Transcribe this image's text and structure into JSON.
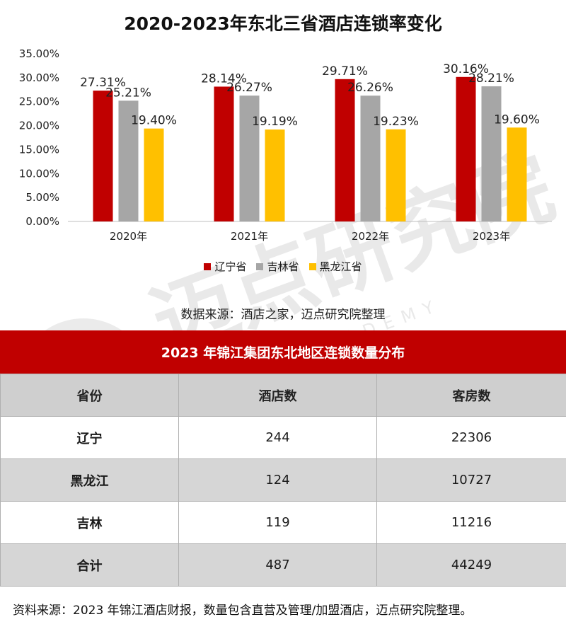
{
  "chart_data": {
    "type": "bar",
    "title": "2020-2023年东北三省酒店连锁率变化",
    "categories": [
      "2020年",
      "2021年",
      "2022年",
      "2023年"
    ],
    "series": [
      {
        "name": "辽宁省",
        "color": "#c00000",
        "values": [
          27.31,
          28.14,
          29.71,
          30.16
        ],
        "labels": [
          "27.31%",
          "28.14%",
          "29.71%",
          "30.16%"
        ]
      },
      {
        "name": "吉林省",
        "color": "#a6a6a6",
        "values": [
          25.21,
          26.27,
          26.26,
          28.21
        ],
        "labels": [
          "25.21%",
          "26.27%",
          "26.26%",
          "28.21%"
        ]
      },
      {
        "name": "黑龙江省",
        "color": "#ffc000",
        "values": [
          19.4,
          19.19,
          19.23,
          19.6
        ],
        "labels": [
          "19.40%",
          "19.19%",
          "19.23%",
          "19.60%"
        ]
      }
    ],
    "ylim": [
      0,
      35
    ],
    "yticks": [
      "0.00%",
      "5.00%",
      "10.00%",
      "15.00%",
      "20.00%",
      "25.00%",
      "30.00%",
      "35.00%"
    ],
    "ytick_values": [
      0,
      5,
      10,
      15,
      20,
      25,
      30,
      35
    ],
    "legend_position": "bottom",
    "grid": false
  },
  "chart_source": "数据来源：酒店之家，迈点研究院整理",
  "table": {
    "title": "2023 年锦江集团东北地区连锁数量分布",
    "headers": [
      "省份",
      "酒店数",
      "客房数"
    ],
    "rows": [
      [
        "辽宁",
        "244",
        "22306"
      ],
      [
        "黑龙江",
        "124",
        "10727"
      ],
      [
        "吉林",
        "119",
        "11216"
      ],
      [
        "合计",
        "487",
        "44249"
      ]
    ]
  },
  "footer_source": "资料来源：2023 年锦江酒店财报，数量包含直营及管理/加盟酒店，迈点研究院整理。",
  "watermark": {
    "text_cn": "迈点研究院",
    "text_en": "MEADIN ACADEMY"
  }
}
